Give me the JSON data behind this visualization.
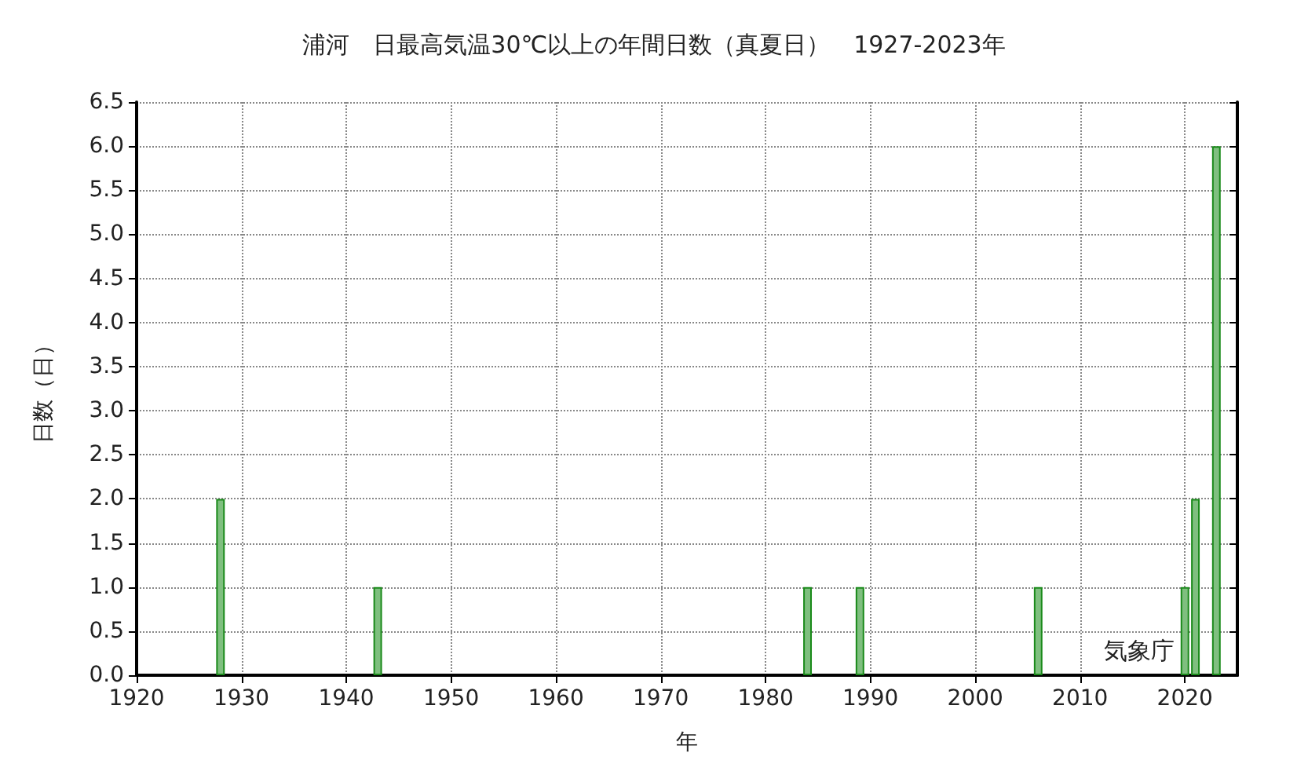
{
  "chart_data": {
    "type": "bar",
    "title": "浦河　日最高気温30℃以上の年間日数（真夏日）　1927-2023年",
    "xlabel": "年",
    "ylabel": "日数（日）",
    "x": [
      1927,
      1928,
      1929,
      1930,
      1931,
      1932,
      1933,
      1934,
      1935,
      1936,
      1937,
      1938,
      1939,
      1940,
      1941,
      1942,
      1943,
      1944,
      1945,
      1946,
      1947,
      1948,
      1949,
      1950,
      1951,
      1952,
      1953,
      1954,
      1955,
      1956,
      1957,
      1958,
      1959,
      1960,
      1961,
      1962,
      1963,
      1964,
      1965,
      1966,
      1967,
      1968,
      1969,
      1970,
      1971,
      1972,
      1973,
      1974,
      1975,
      1976,
      1977,
      1978,
      1979,
      1980,
      1981,
      1982,
      1983,
      1984,
      1985,
      1986,
      1987,
      1988,
      1989,
      1990,
      1991,
      1992,
      1993,
      1994,
      1995,
      1996,
      1997,
      1998,
      1999,
      2000,
      2001,
      2002,
      2003,
      2004,
      2005,
      2006,
      2007,
      2008,
      2009,
      2010,
      2011,
      2012,
      2013,
      2014,
      2015,
      2016,
      2017,
      2018,
      2019,
      2020,
      2021,
      2022,
      2023
    ],
    "series": [
      {
        "color": "#7fbf7f",
        "values": [
          0,
          2,
          0,
          0,
          0,
          0,
          0,
          0,
          0,
          0,
          0,
          0,
          0,
          0,
          0,
          0,
          1,
          0,
          0,
          0,
          0,
          0,
          0,
          0,
          0,
          0,
          0,
          0,
          0,
          0,
          0,
          0,
          0,
          0,
          0,
          0,
          0,
          0,
          0,
          0,
          0,
          0,
          0,
          0,
          0,
          0,
          0,
          0,
          0,
          0,
          0,
          0,
          0,
          0,
          0,
          0,
          0,
          1,
          0,
          0,
          0,
          0,
          1,
          0,
          0,
          0,
          0,
          0,
          0,
          0,
          0,
          0,
          0,
          0,
          0,
          0,
          0,
          0,
          0,
          1,
          0,
          0,
          0,
          0,
          0,
          0,
          0,
          0,
          0,
          0,
          0,
          0,
          0,
          1,
          2,
          0,
          6
        ]
      }
    ],
    "xlim": [
      1920,
      2025
    ],
    "xticks": [
      1920,
      1930,
      1940,
      1950,
      1960,
      1970,
      1980,
      1990,
      2000,
      2010,
      2020
    ],
    "ylim": [
      0,
      6.5
    ],
    "yticks": [
      {
        "value": 0,
        "label": "0.0"
      },
      0.5,
      {
        "value": 1,
        "label": "1.0"
      },
      1.5,
      {
        "value": 2,
        "label": "2.0"
      },
      2.5,
      {
        "value": 3,
        "label": "3.0"
      },
      3.5,
      {
        "value": 4,
        "label": "4.0"
      },
      4.5,
      {
        "value": 5,
        "label": "5.0"
      },
      5.5,
      {
        "value": 6,
        "label": "6.0"
      },
      6.5
    ],
    "grid": true,
    "annotations": [
      "気象庁"
    ]
  }
}
